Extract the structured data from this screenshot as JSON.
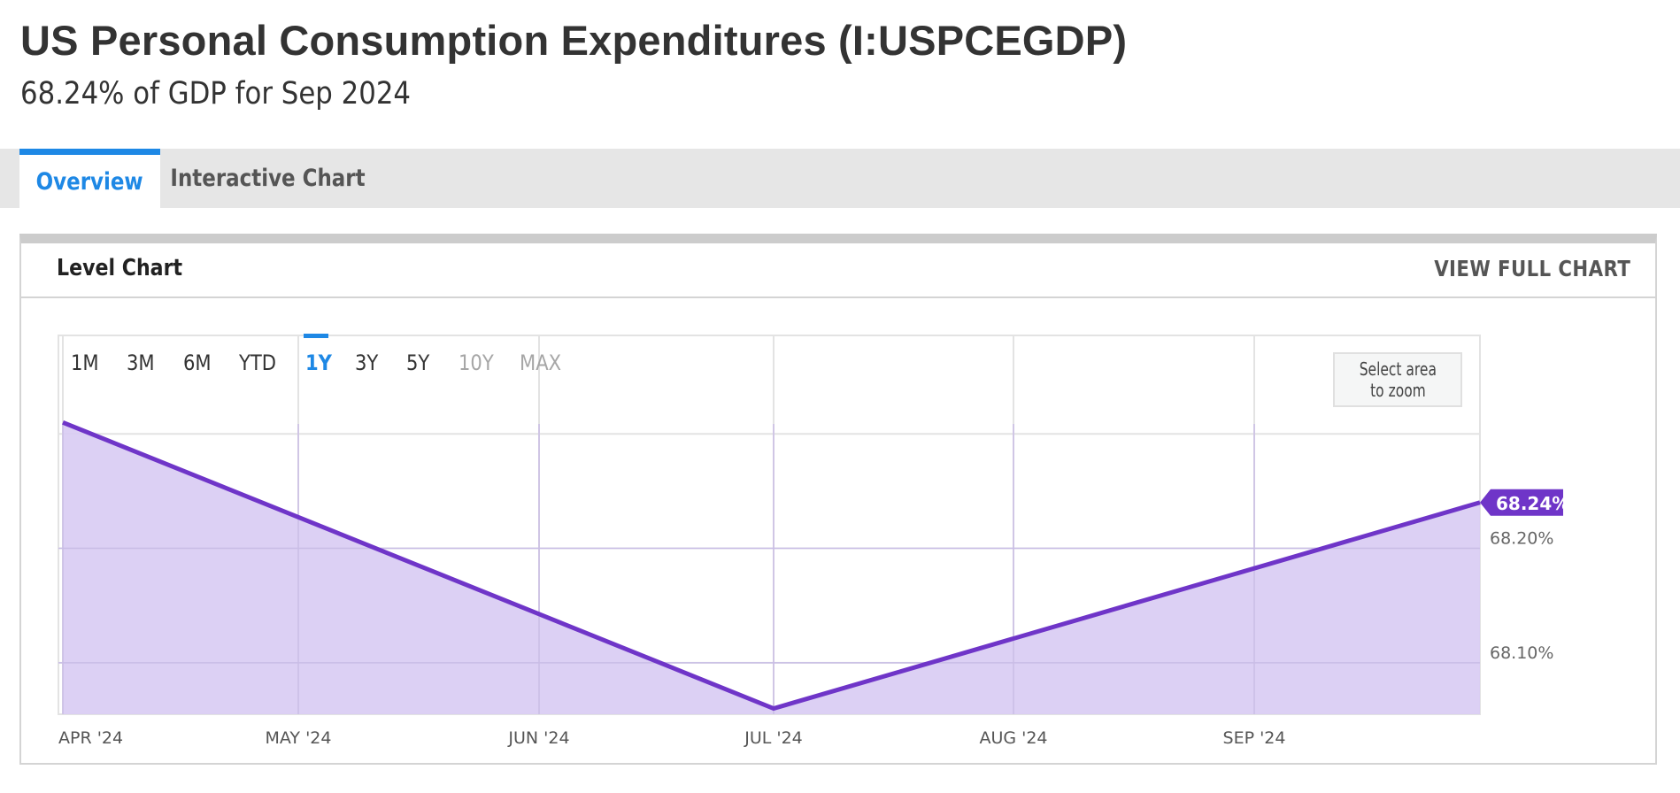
{
  "header": {
    "title": "US Personal Consumption Expenditures (I:USPCEGDP)",
    "subtitle": "68.24% of GDP for Sep 2024"
  },
  "tabs": [
    {
      "label": "Overview",
      "active": true
    },
    {
      "label": "Interactive Chart",
      "active": false
    }
  ],
  "card": {
    "title": "Level Chart",
    "view_full_label": "VIEW FULL CHART"
  },
  "range_selector": {
    "options": [
      "1M",
      "3M",
      "6M",
      "YTD",
      "1Y",
      "3Y",
      "5Y",
      "10Y",
      "MAX"
    ],
    "selected": "1Y",
    "disabled": [
      "10Y",
      "MAX"
    ]
  },
  "zoom_hint": {
    "line1": "Select area",
    "line2": "to zoom"
  },
  "colors": {
    "accent": "#1e88e5",
    "series_line": "#6f35c8",
    "series_fill": "#d9ccf3",
    "last_value_badge": "#6f35c8"
  },
  "chart_data": {
    "type": "area",
    "title": "",
    "xlabel": "",
    "ylabel": "",
    "x_ticks": [
      "APR '24",
      "MAY '24",
      "JUN '24",
      "JUL '24",
      "AUG '24",
      "SEP '24"
    ],
    "y_ticks": [
      {
        "value": 68.2,
        "label": "68.20%"
      },
      {
        "value": 68.1,
        "label": "68.10%"
      }
    ],
    "x_range": [
      "2024-04-01",
      "2024-09-30"
    ],
    "ylim": [
      68.055,
      68.386
    ],
    "series": [
      {
        "points": [
          {
            "x": "2024-04-01",
            "y": 68.31
          },
          {
            "x": "2024-07-01",
            "y": 68.06
          },
          {
            "x": "2024-09-30",
            "y": 68.24
          }
        ]
      }
    ],
    "last_value_label": "68.24%",
    "grid": true,
    "legend": "none"
  }
}
